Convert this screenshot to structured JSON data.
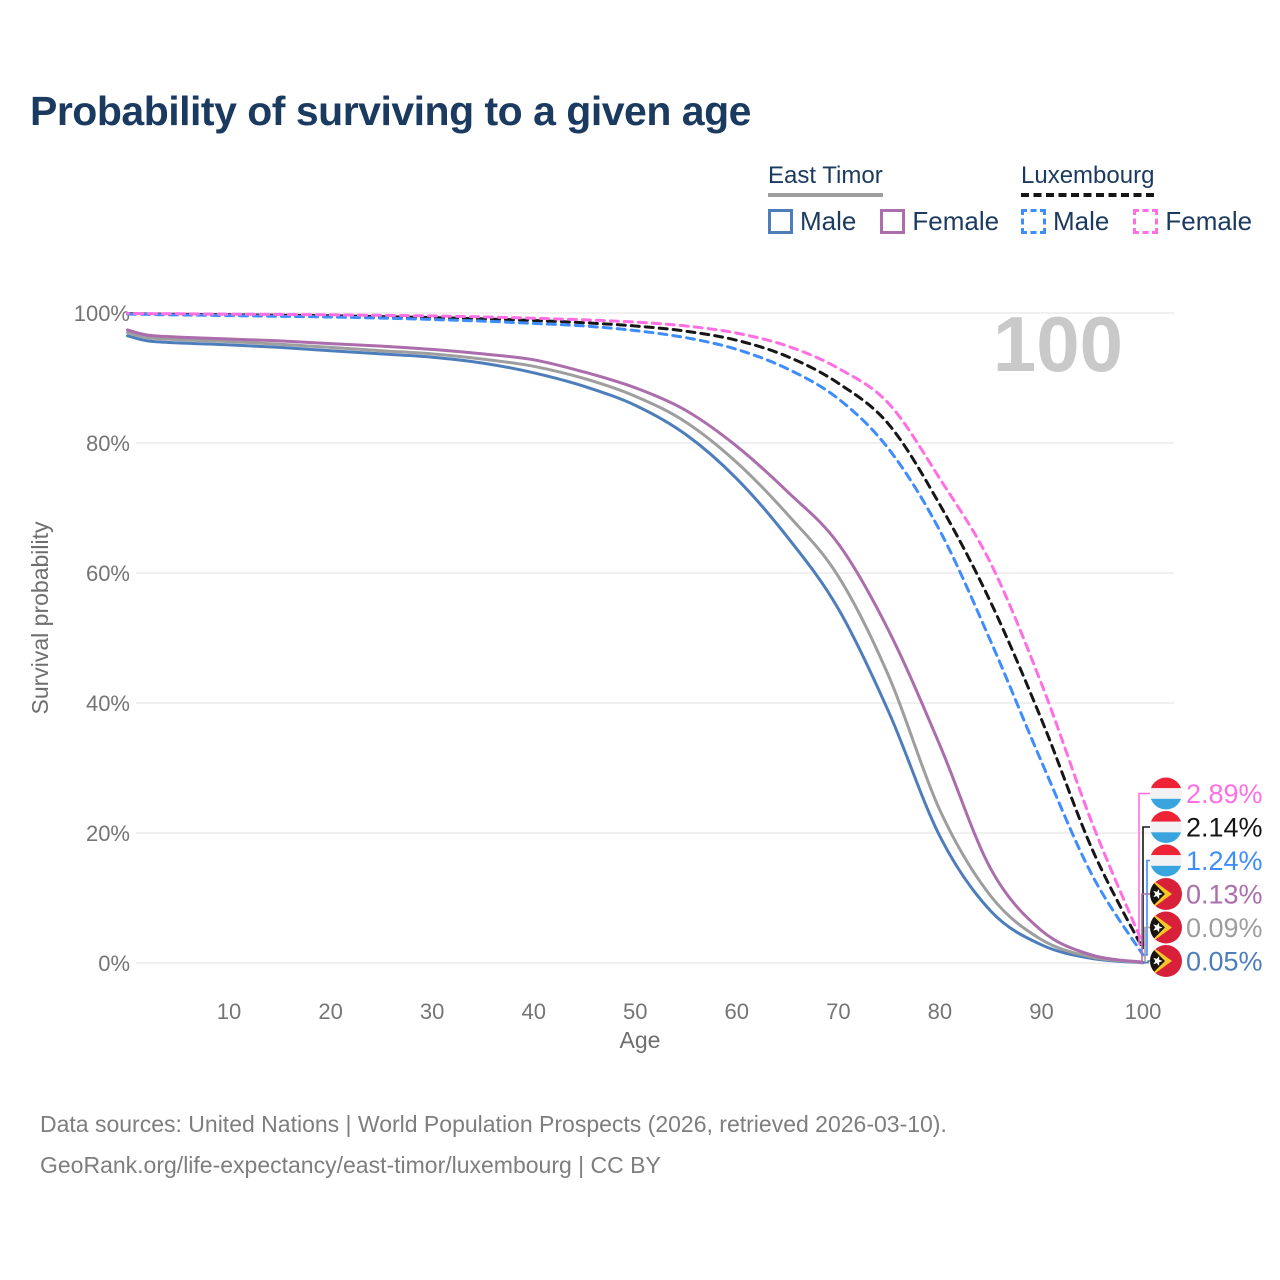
{
  "title": "Probability of surviving to a given age",
  "colors": {
    "title_navy": "#1b3a5f",
    "tick_gray": "#757575",
    "grid_gray": "#ececec",
    "watermark_gray": "#c9c9c9",
    "footer_gray": "#7e7e7e"
  },
  "legend": {
    "groups": [
      {
        "country": "East Timor",
        "line_style": "solid",
        "line_color": "#9e9e9e",
        "items": [
          {
            "label": "Male",
            "color": "#4d7ebb",
            "style": "solid"
          },
          {
            "label": "Female",
            "color": "#ab6dab",
            "style": "solid"
          }
        ]
      },
      {
        "country": "Luxembourg",
        "line_style": "dashed",
        "line_color": "#161616",
        "items": [
          {
            "label": "Male",
            "color": "#3f8dfd",
            "style": "dashed"
          },
          {
            "label": "Female",
            "color": "#ff6fe3",
            "style": "dashed"
          }
        ]
      }
    ]
  },
  "chart_data": {
    "type": "line",
    "title": "Probability of surviving to a given age",
    "xlabel": "Age",
    "ylabel": "Survival probability",
    "xlim": [
      0,
      100
    ],
    "ylim": [
      0,
      100
    ],
    "grid": "horizontal",
    "watermark": "100",
    "xticks": [
      10,
      20,
      30,
      40,
      50,
      60,
      70,
      80,
      90,
      100
    ],
    "yticks": [
      {
        "value": 0,
        "label": "0%"
      },
      {
        "value": 20,
        "label": "20%"
      },
      {
        "value": 40,
        "label": "40%"
      },
      {
        "value": 60,
        "label": "60%"
      },
      {
        "value": 80,
        "label": "80%"
      },
      {
        "value": 100,
        "label": "100%"
      }
    ],
    "ages": [
      0,
      2,
      5,
      10,
      15,
      20,
      25,
      30,
      35,
      40,
      45,
      50,
      55,
      60,
      65,
      70,
      75,
      80,
      85,
      90,
      95,
      100
    ],
    "series": [
      {
        "id": "lux-female",
        "name": "Luxembourg Female",
        "style": "dashed",
        "color": "#ff6fe3",
        "flag": "luxembourg",
        "end_label": "2.89%",
        "end_value": 2.89,
        "values": [
          99.95,
          99.9,
          99.87,
          99.82,
          99.78,
          99.72,
          99.64,
          99.55,
          99.4,
          99.2,
          98.95,
          98.6,
          98.0,
          96.9,
          94.9,
          91.5,
          86.0,
          74.5,
          61.5,
          43.0,
          21.5,
          2.89
        ]
      },
      {
        "id": "lux-total",
        "name": "Luxembourg",
        "style": "dashed",
        "color": "#161616",
        "flag": "luxembourg",
        "end_label": "2.14%",
        "end_value": 2.14,
        "values": [
          99.9,
          99.85,
          99.8,
          99.72,
          99.65,
          99.57,
          99.45,
          99.3,
          99.1,
          98.85,
          98.5,
          98.0,
          97.2,
          95.8,
          93.3,
          89.2,
          82.8,
          70.5,
          55.5,
          37.5,
          17.5,
          2.14
        ]
      },
      {
        "id": "lux-male",
        "name": "Luxembourg Male",
        "style": "dashed",
        "color": "#3f8dfd",
        "flag": "luxembourg",
        "end_label": "1.24%",
        "end_value": 1.24,
        "values": [
          99.85,
          99.78,
          99.7,
          99.6,
          99.5,
          99.38,
          99.22,
          99.0,
          98.75,
          98.4,
          98.0,
          97.3,
          96.2,
          94.4,
          91.4,
          86.8,
          79.0,
          66.5,
          49.5,
          31.0,
          13.5,
          1.24
        ]
      },
      {
        "id": "et-female",
        "name": "East Timor Female",
        "style": "solid",
        "color": "#ab6dab",
        "flag": "east-timor",
        "end_label": "0.13%",
        "end_value": 0.13,
        "values": [
          97.4,
          96.6,
          96.3,
          96.0,
          95.7,
          95.3,
          94.9,
          94.4,
          93.7,
          92.8,
          90.9,
          88.5,
          85.0,
          79.5,
          72.5,
          64.5,
          51.0,
          33.5,
          14.5,
          5.0,
          1.2,
          0.13
        ]
      },
      {
        "id": "et-total",
        "name": "East Timor",
        "style": "solid",
        "color": "#9e9e9e",
        "flag": "east-timor",
        "end_label": "0.09%",
        "end_value": 0.09,
        "values": [
          97.0,
          96.2,
          95.9,
          95.6,
          95.2,
          94.7,
          94.2,
          93.7,
          92.9,
          91.8,
          89.9,
          87.2,
          83.2,
          77.0,
          69.0,
          59.5,
          44.0,
          23.5,
          10.3,
          3.6,
          0.9,
          0.09
        ]
      },
      {
        "id": "et-male",
        "name": "East Timor Male",
        "style": "solid",
        "color": "#4d7ebb",
        "flag": "east-timor",
        "end_label": "0.05%",
        "end_value": 0.05,
        "values": [
          96.5,
          95.7,
          95.4,
          95.1,
          94.7,
          94.2,
          93.7,
          93.2,
          92.3,
          90.8,
          88.7,
          85.8,
          81.3,
          74.5,
          65.5,
          54.5,
          38.5,
          19.5,
          8.0,
          2.8,
          0.7,
          0.05
        ]
      }
    ],
    "flag_colors": {
      "luxembourg": {
        "top": "#ee2436",
        "middle": "#f2f2f4",
        "bottom": "#3aa4de"
      },
      "east_timor": {
        "field": "#d9203b",
        "yellow": "#ffc726",
        "black": "#17130e",
        "star": "#ffffff"
      }
    }
  },
  "footer": {
    "line1": "Data sources: United Nations | World Population Prospects (2026, retrieved 2026-03-10).",
    "line2": "GeoRank.org/life-expectancy/east-timor/luxembourg | CC BY"
  }
}
